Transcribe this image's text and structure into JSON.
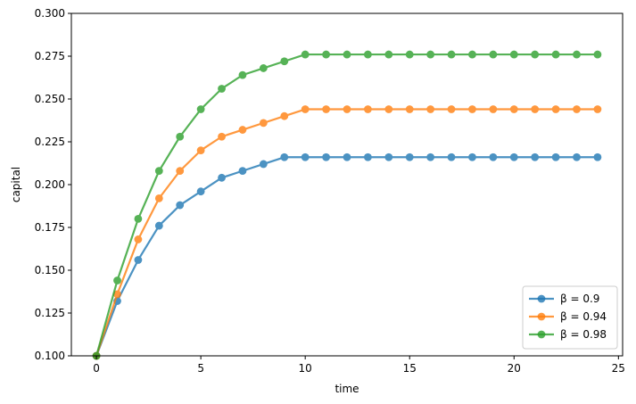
{
  "chart_data": {
    "type": "line",
    "title": "",
    "xlabel": "time",
    "ylabel": "capital",
    "xlim": [
      -1.2,
      25.2
    ],
    "ylim": [
      0.1,
      0.3
    ],
    "xticks": [
      0,
      5,
      10,
      15,
      20,
      25
    ],
    "yticks": [
      0.1,
      0.125,
      0.15,
      0.175,
      0.2,
      0.225,
      0.25,
      0.275,
      0.3
    ],
    "xtick_labels": [
      "0",
      "5",
      "10",
      "15",
      "20",
      "25"
    ],
    "ytick_labels": [
      "0.100",
      "0.125",
      "0.150",
      "0.175",
      "0.200",
      "0.225",
      "0.250",
      "0.275",
      "0.300"
    ],
    "grid": false,
    "legend_position": "bottom-right",
    "x": [
      0,
      1,
      2,
      3,
      4,
      5,
      6,
      7,
      8,
      9,
      10,
      11,
      12,
      13,
      14,
      15,
      16,
      17,
      18,
      19,
      20,
      21,
      22,
      23,
      24
    ],
    "series": [
      {
        "name": "β = 0.9",
        "color": "#1f77b4",
        "values": [
          0.1,
          0.132,
          0.156,
          0.176,
          0.188,
          0.196,
          0.204,
          0.208,
          0.212,
          0.216,
          0.216,
          0.216,
          0.216,
          0.216,
          0.216,
          0.216,
          0.216,
          0.216,
          0.216,
          0.216,
          0.216,
          0.216,
          0.216,
          0.216,
          0.216
        ]
      },
      {
        "name": "β = 0.94",
        "color": "#ff7f0e",
        "values": [
          0.1,
          0.136,
          0.168,
          0.192,
          0.208,
          0.22,
          0.228,
          0.232,
          0.236,
          0.24,
          0.244,
          0.244,
          0.244,
          0.244,
          0.244,
          0.244,
          0.244,
          0.244,
          0.244,
          0.244,
          0.244,
          0.244,
          0.244,
          0.244,
          0.244
        ]
      },
      {
        "name": "β = 0.98",
        "color": "#2ca02c",
        "values": [
          0.1,
          0.144,
          0.18,
          0.208,
          0.228,
          0.244,
          0.256,
          0.264,
          0.268,
          0.272,
          0.276,
          0.276,
          0.276,
          0.276,
          0.276,
          0.276,
          0.276,
          0.276,
          0.276,
          0.276,
          0.276,
          0.276,
          0.276,
          0.276,
          0.276
        ]
      }
    ]
  }
}
